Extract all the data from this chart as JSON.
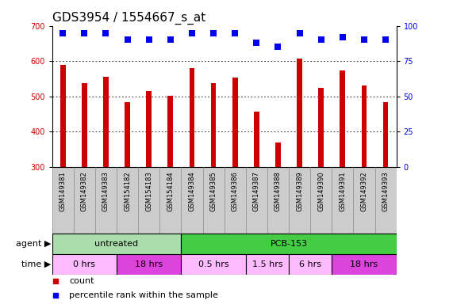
{
  "title": "GDS3954 / 1554667_s_at",
  "samples": [
    "GSM149381",
    "GSM149382",
    "GSM149383",
    "GSM154182",
    "GSM154183",
    "GSM154184",
    "GSM149384",
    "GSM149385",
    "GSM149386",
    "GSM149387",
    "GSM149388",
    "GSM149389",
    "GSM149390",
    "GSM149391",
    "GSM149392",
    "GSM149393"
  ],
  "counts": [
    590,
    537,
    555,
    483,
    515,
    502,
    580,
    537,
    553,
    457,
    370,
    608,
    525,
    573,
    530,
    483
  ],
  "percentile_ranks": [
    95,
    95,
    95,
    90,
    90,
    90,
    95,
    95,
    95,
    88,
    85,
    95,
    90,
    92,
    90,
    90
  ],
  "ylim_left": [
    300,
    700
  ],
  "yticks_left": [
    300,
    400,
    500,
    600,
    700
  ],
  "ylim_right": [
    0,
    100
  ],
  "yticks_right": [
    0,
    25,
    50,
    75,
    100
  ],
  "bar_color": "#cc0000",
  "dot_color": "#0000ee",
  "dot_size": 28,
  "plot_bg": "#ffffff",
  "sample_bg": "#cccccc",
  "agent_groups": [
    {
      "text": "untreated",
      "start": 0,
      "end": 6,
      "color": "#aaddaa"
    },
    {
      "text": "PCB-153",
      "start": 6,
      "end": 16,
      "color": "#44cc44"
    }
  ],
  "time_groups": [
    {
      "text": "0 hrs",
      "start": 0,
      "end": 3,
      "color": "#ffbbff"
    },
    {
      "text": "18 hrs",
      "start": 3,
      "end": 6,
      "color": "#dd44dd"
    },
    {
      "text": "0.5 hrs",
      "start": 6,
      "end": 9,
      "color": "#ffbbff"
    },
    {
      "text": "1.5 hrs",
      "start": 9,
      "end": 11,
      "color": "#ffbbff"
    },
    {
      "text": "6 hrs",
      "start": 11,
      "end": 13,
      "color": "#ffbbff"
    },
    {
      "text": "18 hrs",
      "start": 13,
      "end": 16,
      "color": "#dd44dd"
    }
  ],
  "legend": [
    {
      "label": "count",
      "color": "#cc0000"
    },
    {
      "label": "percentile rank within the sample",
      "color": "#0000ee"
    }
  ],
  "title_fs": 11,
  "tick_fs": 7,
  "sample_fs": 6,
  "row_fs": 8,
  "legend_fs": 8
}
